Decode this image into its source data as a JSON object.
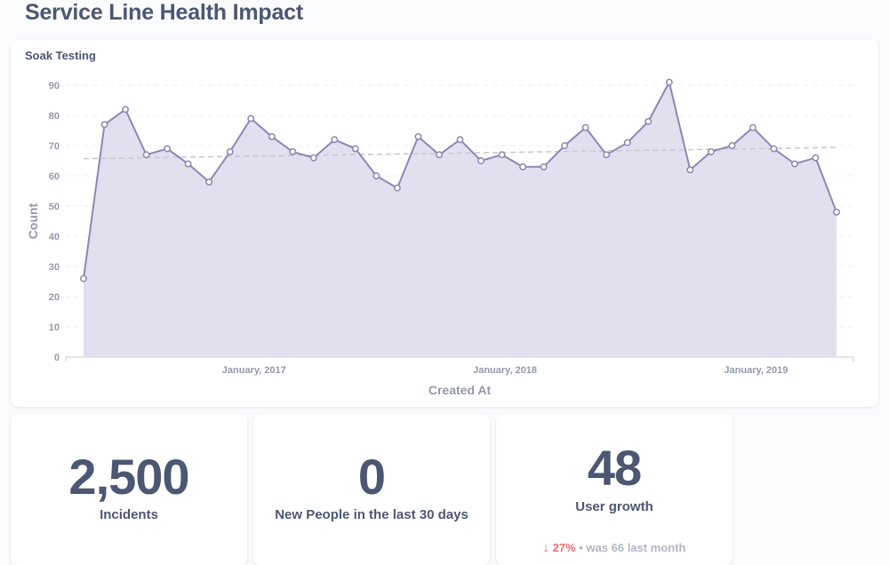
{
  "dashboard": {
    "title": "Service Line Health Impact"
  },
  "chart_card": {
    "title": "Soak Testing"
  },
  "chart_data": {
    "type": "area",
    "title": "Soak Testing",
    "xlabel": "Created At",
    "ylabel": "Count",
    "ylim": [
      0,
      90
    ],
    "yticks": [
      0,
      10,
      20,
      30,
      40,
      50,
      60,
      70,
      80,
      90
    ],
    "xtick_labels": [
      {
        "label": "January, 2017",
        "index": 8.15
      },
      {
        "label": "January, 2018",
        "index": 20.15
      },
      {
        "label": "January, 2019",
        "index": 32.15
      }
    ],
    "x": [
      "2016-05",
      "2016-06",
      "2016-07",
      "2016-08",
      "2016-09",
      "2016-10",
      "2016-11",
      "2016-12",
      "2017-01",
      "2017-02",
      "2017-03",
      "2017-04",
      "2017-05",
      "2017-06",
      "2017-07",
      "2017-08",
      "2017-09",
      "2017-10",
      "2017-11",
      "2017-12",
      "2018-01",
      "2018-02",
      "2018-03",
      "2018-04",
      "2018-05",
      "2018-06",
      "2018-07",
      "2018-08",
      "2018-09",
      "2018-10",
      "2018-11",
      "2018-12",
      "2019-01",
      "2019-02",
      "2019-03",
      "2019-04",
      "2019-05"
    ],
    "series": [
      {
        "values": [
          26,
          77,
          82,
          67,
          69,
          64,
          58,
          68,
          79,
          73,
          68,
          66,
          72,
          69,
          60,
          56,
          73,
          67,
          72,
          65,
          67,
          63,
          63,
          70,
          76,
          67,
          71,
          78,
          91,
          62,
          68,
          70,
          76,
          69,
          64,
          66,
          48
        ]
      }
    ],
    "trend": [
      65.7,
      69.4
    ],
    "grid": true,
    "colors": {
      "line": "#8e86b4",
      "fill": "#e2e0ef",
      "trend": "#c8c8cc"
    }
  },
  "scalars": [
    {
      "value": "2,500",
      "label": "Incidents"
    },
    {
      "value": "0",
      "label": "New People in the last 30 days"
    },
    {
      "value": "48",
      "label": "User growth",
      "comparison": {
        "arrow": "↓",
        "change": "27%",
        "separator": "•",
        "was_text": "was 66",
        "period": "last month"
      }
    }
  ],
  "colors": {
    "text": "#4c5773",
    "down": "#ed6e6e",
    "muted": "#b0b6c3"
  }
}
